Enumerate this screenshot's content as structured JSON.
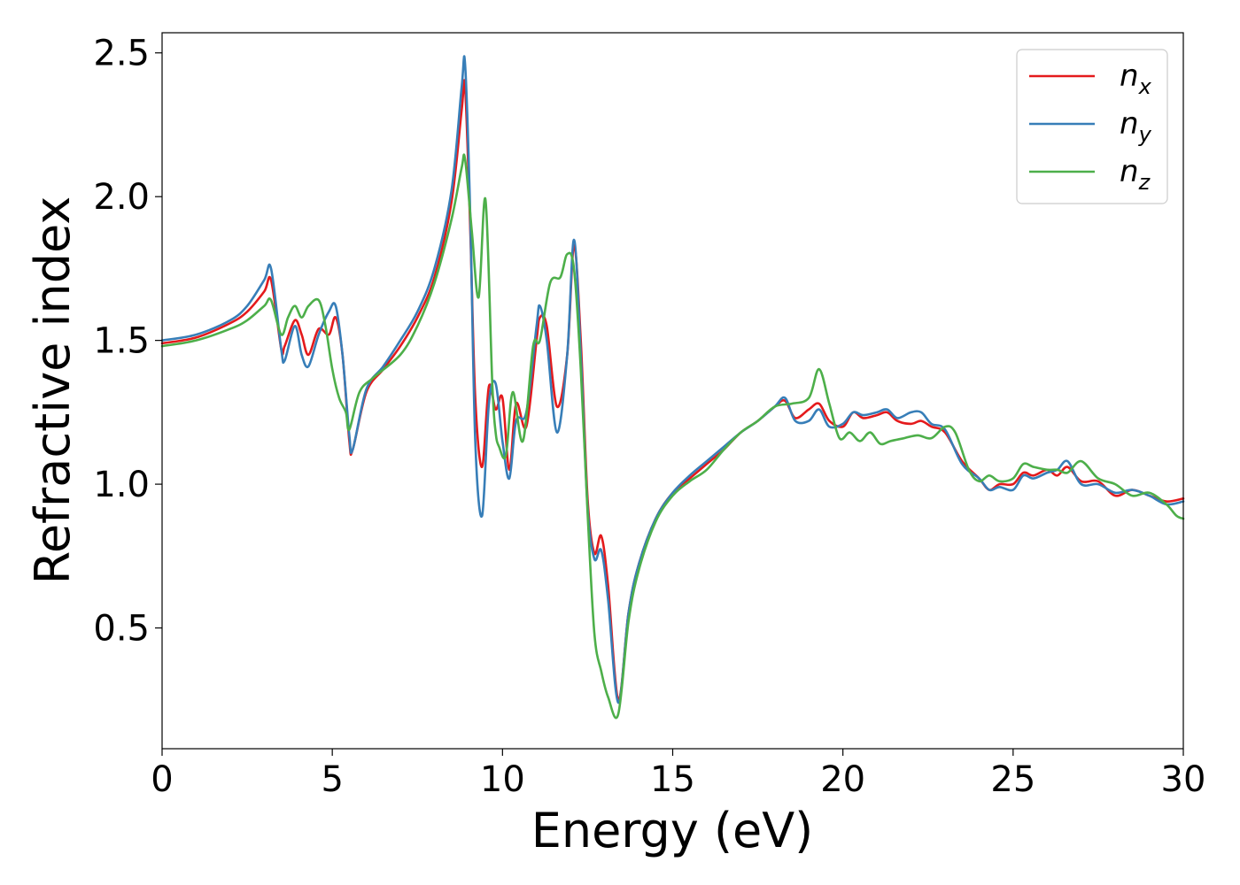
{
  "chart_data": {
    "type": "line",
    "title": "",
    "xlabel": "Energy (eV)",
    "ylabel": "Refractive index",
    "xlim": [
      0,
      30
    ],
    "ylim": [
      0.08,
      2.57
    ],
    "xticks": [
      0,
      5,
      10,
      15,
      20,
      25,
      30
    ],
    "yticks": [
      0.5,
      1.0,
      1.5,
      2.0,
      2.5
    ],
    "xtick_labels": [
      "0",
      "5",
      "10",
      "15",
      "20",
      "25",
      "30"
    ],
    "ytick_labels": [
      "0.5",
      "1.0",
      "1.5",
      "2.0",
      "2.5"
    ],
    "grid": false,
    "legend_position": "top-right",
    "series": [
      {
        "name": "n_x",
        "legend_base": "n",
        "legend_sub": "x",
        "color": "#e41a1c",
        "x": [
          0,
          1,
          2,
          2.5,
          3,
          3.2,
          3.5,
          3.6,
          3.9,
          4.1,
          4.3,
          4.6,
          4.9,
          5.1,
          5.3,
          5.5,
          5.6,
          6,
          6.5,
          7,
          7.5,
          8,
          8.5,
          8.8,
          8.9,
          9.05,
          9.2,
          9.4,
          9.6,
          9.8,
          10,
          10.2,
          10.4,
          10.7,
          11,
          11.1,
          11.3,
          11.6,
          11.9,
          12.1,
          12.3,
          12.5,
          12.7,
          12.9,
          13.1,
          13.4,
          13.7,
          14,
          14.5,
          15,
          15.5,
          16,
          16.5,
          17,
          17.5,
          18,
          18.3,
          18.6,
          19,
          19.3,
          19.6,
          20,
          20.3,
          20.6,
          21,
          21.3,
          21.6,
          22,
          22.3,
          22.6,
          23,
          23.5,
          24,
          24.3,
          24.6,
          25,
          25.3,
          25.6,
          26,
          26.3,
          26.6,
          27,
          27.5,
          28,
          28.5,
          29,
          29.5,
          30
        ],
        "y": [
          1.49,
          1.51,
          1.56,
          1.6,
          1.67,
          1.71,
          1.47,
          1.48,
          1.57,
          1.52,
          1.45,
          1.54,
          1.52,
          1.58,
          1.45,
          1.15,
          1.12,
          1.32,
          1.4,
          1.48,
          1.58,
          1.72,
          1.98,
          2.3,
          2.38,
          1.9,
          1.3,
          1.06,
          1.34,
          1.26,
          1.3,
          1.05,
          1.28,
          1.2,
          1.5,
          1.58,
          1.55,
          1.27,
          1.45,
          1.83,
          1.5,
          0.95,
          0.76,
          0.82,
          0.65,
          0.25,
          0.55,
          0.72,
          0.88,
          0.97,
          1.02,
          1.07,
          1.12,
          1.18,
          1.22,
          1.27,
          1.29,
          1.23,
          1.26,
          1.28,
          1.22,
          1.2,
          1.25,
          1.23,
          1.24,
          1.25,
          1.22,
          1.21,
          1.22,
          1.2,
          1.18,
          1.08,
          1.02,
          0.98,
          1.0,
          1.0,
          1.04,
          1.03,
          1.05,
          1.03,
          1.06,
          1.01,
          1.01,
          0.96,
          0.98,
          0.96,
          0.94,
          0.95
        ]
      },
      {
        "name": "n_y",
        "legend_base": "n",
        "legend_sub": "y",
        "color": "#377eb8",
        "x": [
          0,
          1,
          2,
          2.5,
          3,
          3.2,
          3.5,
          3.6,
          3.9,
          4.1,
          4.3,
          4.6,
          4.9,
          5.1,
          5.3,
          5.5,
          5.6,
          6,
          6.5,
          7,
          7.5,
          8,
          8.5,
          8.8,
          8.9,
          9.05,
          9.2,
          9.4,
          9.6,
          9.8,
          10,
          10.2,
          10.4,
          10.7,
          11,
          11.1,
          11.3,
          11.6,
          11.9,
          12.1,
          12.3,
          12.5,
          12.7,
          12.9,
          13.1,
          13.4,
          13.7,
          14,
          14.5,
          15,
          15.5,
          16,
          16.5,
          17,
          17.5,
          18,
          18.3,
          18.6,
          19,
          19.3,
          19.6,
          20,
          20.3,
          20.6,
          21,
          21.3,
          21.6,
          22,
          22.3,
          22.6,
          23,
          23.5,
          24,
          24.3,
          24.6,
          25,
          25.3,
          25.6,
          26,
          26.3,
          26.6,
          27,
          27.5,
          28,
          28.5,
          29,
          29.5,
          30
        ],
        "y": [
          1.5,
          1.52,
          1.57,
          1.62,
          1.71,
          1.75,
          1.47,
          1.43,
          1.55,
          1.45,
          1.41,
          1.52,
          1.6,
          1.62,
          1.45,
          1.17,
          1.12,
          1.33,
          1.41,
          1.5,
          1.6,
          1.75,
          2.02,
          2.38,
          2.46,
          1.95,
          1.15,
          0.89,
          1.28,
          1.35,
          1.15,
          1.02,
          1.22,
          1.25,
          1.55,
          1.62,
          1.5,
          1.18,
          1.45,
          1.85,
          1.45,
          0.92,
          0.74,
          0.77,
          0.6,
          0.24,
          0.55,
          0.72,
          0.88,
          0.97,
          1.03,
          1.08,
          1.13,
          1.18,
          1.22,
          1.27,
          1.3,
          1.22,
          1.22,
          1.26,
          1.2,
          1.21,
          1.25,
          1.24,
          1.25,
          1.26,
          1.23,
          1.25,
          1.25,
          1.21,
          1.19,
          1.07,
          1.02,
          0.98,
          0.99,
          0.98,
          1.03,
          1.02,
          1.04,
          1.05,
          1.08,
          1.0,
          1.0,
          0.97,
          0.98,
          0.96,
          0.93,
          0.94
        ]
      },
      {
        "name": "n_z",
        "legend_base": "n",
        "legend_sub": "z",
        "color": "#4daf4a",
        "x": [
          0,
          1,
          2,
          2.5,
          3,
          3.2,
          3.5,
          3.7,
          3.9,
          4.1,
          4.3,
          4.6,
          4.8,
          5.0,
          5.2,
          5.4,
          5.5,
          5.8,
          6.2,
          7,
          7.5,
          8,
          8.5,
          8.8,
          8.9,
          9.1,
          9.3,
          9.5,
          9.7,
          9.8,
          9.9,
          10.1,
          10.3,
          10.6,
          10.9,
          11.1,
          11.4,
          11.7,
          11.9,
          12.1,
          12.3,
          12.5,
          12.7,
          12.9,
          13.1,
          13.4,
          13.7,
          14,
          14.5,
          15,
          15.5,
          16,
          16.5,
          17,
          17.5,
          18,
          18.5,
          19,
          19.3,
          19.6,
          19.9,
          20.2,
          20.5,
          20.8,
          21.1,
          21.4,
          21.8,
          22.2,
          22.6,
          23,
          23.3,
          23.7,
          24,
          24.3,
          24.6,
          25,
          25.3,
          25.6,
          26,
          26.3,
          26.6,
          27,
          27.5,
          28,
          28.5,
          29,
          29.5,
          29.8,
          30
        ],
        "y": [
          1.48,
          1.5,
          1.54,
          1.57,
          1.62,
          1.64,
          1.52,
          1.58,
          1.62,
          1.58,
          1.62,
          1.64,
          1.55,
          1.4,
          1.3,
          1.25,
          1.19,
          1.32,
          1.37,
          1.45,
          1.55,
          1.7,
          1.92,
          2.1,
          2.13,
          1.88,
          1.65,
          1.99,
          1.35,
          1.18,
          1.13,
          1.1,
          1.32,
          1.15,
          1.48,
          1.5,
          1.7,
          1.72,
          1.8,
          1.75,
          1.4,
          0.9,
          0.48,
          0.35,
          0.26,
          0.2,
          0.52,
          0.7,
          0.87,
          0.96,
          1.01,
          1.05,
          1.12,
          1.18,
          1.22,
          1.27,
          1.28,
          1.3,
          1.4,
          1.28,
          1.16,
          1.18,
          1.15,
          1.18,
          1.14,
          1.15,
          1.16,
          1.17,
          1.16,
          1.2,
          1.18,
          1.05,
          1.01,
          1.03,
          1.01,
          1.02,
          1.07,
          1.06,
          1.05,
          1.05,
          1.04,
          1.08,
          1.02,
          1.0,
          0.96,
          0.97,
          0.93,
          0.89,
          0.88
        ]
      }
    ]
  }
}
